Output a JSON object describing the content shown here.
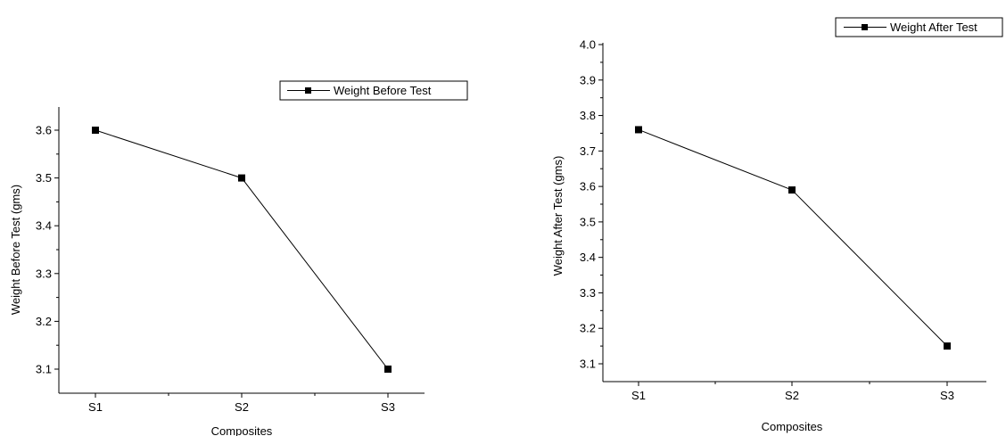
{
  "chart_data": [
    {
      "type": "line",
      "categories": [
        "S1",
        "S2",
        "S3"
      ],
      "series": [
        {
          "name": "Weight Before Test",
          "values": [
            3.6,
            3.5,
            3.1
          ],
          "color": "#000000",
          "marker": "square"
        }
      ],
      "xlabel": "Composites",
      "ylabel": "Weight Before Test (gms)",
      "ylim": [
        3.05,
        3.65
      ],
      "yticks": [
        "3.1",
        "3.2",
        "3.3",
        "3.4",
        "3.5",
        "3.6"
      ],
      "grid": false,
      "legend": "top-right"
    },
    {
      "type": "line",
      "categories": [
        "S1",
        "S2",
        "S3"
      ],
      "series": [
        {
          "name": "Weight After Test",
          "values": [
            3.76,
            3.59,
            3.15
          ],
          "color": "#000000",
          "marker": "square"
        }
      ],
      "xlabel": "Composites",
      "ylabel": "Weight After Test (gms)",
      "ylim": [
        3.05,
        4.0
      ],
      "yticks": [
        "3.1",
        "3.2",
        "3.3",
        "3.4",
        "3.5",
        "3.6",
        "3.7",
        "3.8",
        "3.9",
        "4.0"
      ],
      "grid": false,
      "legend": "top-right"
    }
  ]
}
